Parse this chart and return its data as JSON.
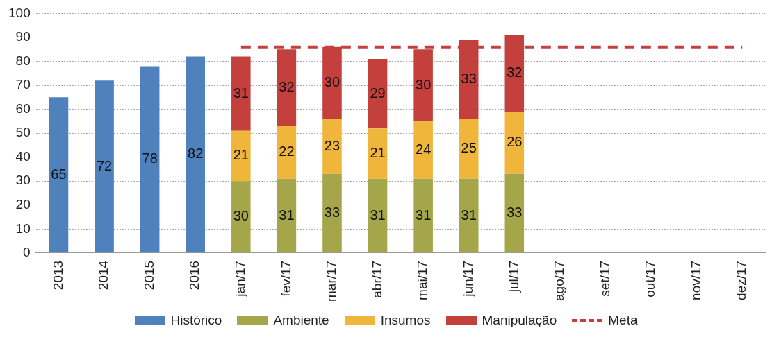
{
  "chart_data": {
    "type": "bar",
    "stacked": true,
    "categories": [
      "2013",
      "2014",
      "2015",
      "2016",
      "jan/17",
      "fev/17",
      "mar/17",
      "abr/17",
      "mai/17",
      "jun/17",
      "jul/17",
      "ago/17",
      "set/17",
      "out/17",
      "nov/17",
      "dez/17"
    ],
    "series": [
      {
        "name": "Histórico",
        "color": "#4f81bd",
        "values": [
          65,
          72,
          78,
          82,
          null,
          null,
          null,
          null,
          null,
          null,
          null,
          null,
          null,
          null,
          null,
          null
        ],
        "value_labels": [
          "65",
          "72",
          "78",
          "82",
          null,
          null,
          null,
          null,
          null,
          null,
          null,
          null,
          null,
          null,
          null,
          null
        ]
      },
      {
        "name": "Ambiente",
        "color": "#a5a64a",
        "values": [
          null,
          null,
          null,
          null,
          30,
          31,
          33,
          31,
          31,
          31,
          33,
          null,
          null,
          null,
          null,
          null
        ],
        "value_labels": [
          null,
          null,
          null,
          null,
          "30",
          "31",
          "33",
          "31",
          "31",
          "31",
          "33",
          null,
          null,
          null,
          null,
          null
        ]
      },
      {
        "name": "Insumos",
        "color": "#f0b63c",
        "values": [
          null,
          null,
          null,
          null,
          21,
          22,
          23,
          21,
          24,
          25,
          26,
          null,
          null,
          null,
          null,
          null
        ],
        "value_labels": [
          null,
          null,
          null,
          null,
          "21",
          "22",
          "23",
          "21",
          "24",
          "25",
          "26",
          null,
          null,
          null,
          null,
          null
        ]
      },
      {
        "name": "Manipulação",
        "color": "#c4403d",
        "values": [
          null,
          null,
          null,
          null,
          31,
          32,
          30,
          29,
          30,
          33,
          32,
          null,
          null,
          null,
          null,
          null
        ],
        "value_labels": [
          null,
          null,
          null,
          null,
          "31",
          "32",
          "30",
          "29",
          "30",
          "33",
          "32",
          null,
          null,
          null,
          null,
          null
        ]
      },
      {
        "name": "Meta",
        "type": "line",
        "color": "#c4403d",
        "line_style": "dashed",
        "marker": "none",
        "values": [
          null,
          null,
          null,
          null,
          86,
          86,
          86,
          86,
          86,
          86,
          86,
          86,
          86,
          86,
          86,
          86
        ]
      }
    ],
    "ylim": [
      0,
      100
    ],
    "yticks": [
      0,
      10,
      20,
      30,
      40,
      50,
      60,
      70,
      80,
      90,
      100
    ],
    "grid": "y",
    "legend": "bottom"
  }
}
